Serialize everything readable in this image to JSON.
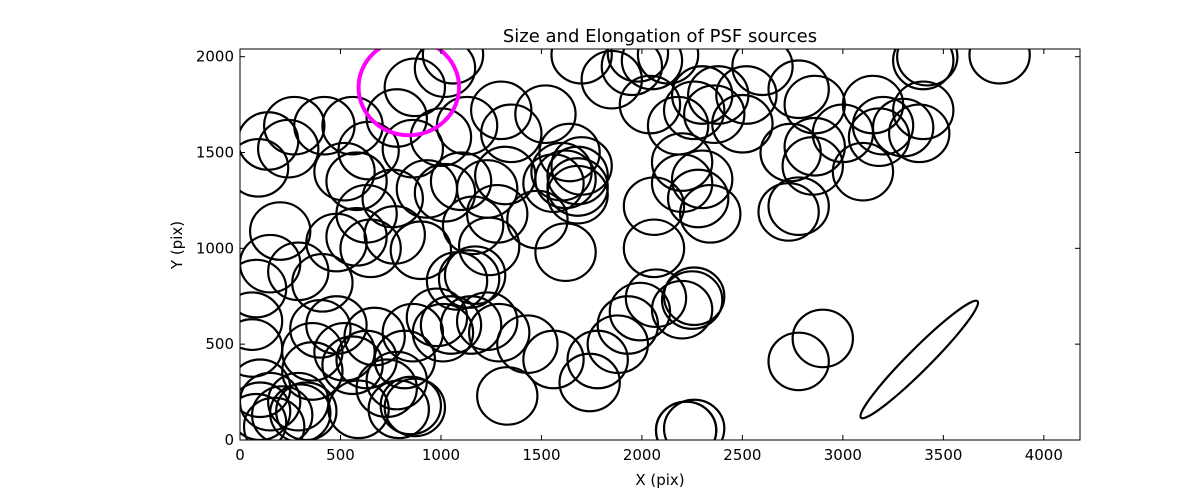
{
  "chart_data": {
    "type": "scatter",
    "marker": "ellipse",
    "title": "Size and Elongation of PSF sources",
    "xlabel": "X (pix)",
    "ylabel": "Y (pix)",
    "xlim": [
      0,
      4180
    ],
    "ylim": [
      0,
      2040
    ],
    "xticks": [
      0,
      500,
      1000,
      1500,
      2000,
      2500,
      3000,
      3500,
      4000
    ],
    "yticks": [
      0,
      500,
      1000,
      1500,
      2000
    ],
    "grid": false,
    "default_diameter": 300,
    "colors": {
      "sources": "#000000",
      "highlight": "#ff00ff"
    },
    "highlight": {
      "x": 840,
      "y": 1840,
      "diameter": 500
    },
    "elongated": [
      {
        "x": 3380,
        "y": 420,
        "major": 820,
        "minor": 110,
        "angle_deg": 45
      }
    ],
    "sources": [
      [
        870,
        1840
      ],
      [
        1020,
        1940
      ],
      [
        1060,
        2010
      ],
      [
        140,
        1560
      ],
      [
        90,
        1420
      ],
      [
        270,
        1640
      ],
      [
        240,
        1520
      ],
      [
        420,
        1640
      ],
      [
        560,
        1640
      ],
      [
        640,
        1510
      ],
      [
        520,
        1400
      ],
      [
        580,
        1350
      ],
      [
        630,
        1180
      ],
      [
        780,
        1680
      ],
      [
        860,
        1520
      ],
      [
        760,
        1260
      ],
      [
        1000,
        1580
      ],
      [
        1130,
        1640
      ],
      [
        1100,
        1350
      ],
      [
        1230,
        1310
      ],
      [
        1320,
        1380
      ],
      [
        1280,
        1180
      ],
      [
        1160,
        1120
      ],
      [
        1300,
        1720
      ],
      [
        1350,
        1600
      ],
      [
        1520,
        1700
      ],
      [
        1560,
        1340
      ],
      [
        1600,
        1400
      ],
      [
        1640,
        1500
      ],
      [
        1700,
        1430
      ],
      [
        1680,
        1280
      ],
      [
        1480,
        1150
      ],
      [
        1620,
        980
      ],
      [
        1700,
        2010
      ],
      [
        1850,
        1880
      ],
      [
        1950,
        1950
      ],
      [
        2050,
        1980
      ],
      [
        1980,
        2020
      ],
      [
        2130,
        2010
      ],
      [
        2040,
        1750
      ],
      [
        2180,
        1640
      ],
      [
        2260,
        1720
      ],
      [
        2300,
        1800
      ],
      [
        2360,
        1700
      ],
      [
        2380,
        1800
      ],
      [
        2520,
        1800
      ],
      [
        2500,
        1650
      ],
      [
        2600,
        1950
      ],
      [
        2780,
        1830
      ],
      [
        2860,
        1750
      ],
      [
        2740,
        1500
      ],
      [
        2850,
        1430
      ],
      [
        2860,
        1530
      ],
      [
        3000,
        1600
      ],
      [
        3100,
        1400
      ],
      [
        3150,
        1750
      ],
      [
        3200,
        1640
      ],
      [
        3180,
        1580
      ],
      [
        3300,
        1630
      ],
      [
        3380,
        1600
      ],
      [
        3400,
        1720
      ],
      [
        3400,
        1980
      ],
      [
        3420,
        2000
      ],
      [
        3780,
        2010
      ],
      [
        2200,
        1450
      ],
      [
        2300,
        1360
      ],
      [
        2200,
        1340
      ],
      [
        2280,
        1260
      ],
      [
        2340,
        1180
      ],
      [
        2060,
        1220
      ],
      [
        2060,
        1000
      ],
      [
        1990,
        670
      ],
      [
        1880,
        500
      ],
      [
        1930,
        600
      ],
      [
        2070,
        740
      ],
      [
        2200,
        680
      ],
      [
        2250,
        730
      ],
      [
        2260,
        750
      ],
      [
        1780,
        420
      ],
      [
        1740,
        300
      ],
      [
        1560,
        420
      ],
      [
        1430,
        500
      ],
      [
        1290,
        560
      ],
      [
        1330,
        230
      ],
      [
        1230,
        620
      ],
      [
        1150,
        600
      ],
      [
        1140,
        840
      ],
      [
        1240,
        1010
      ],
      [
        1080,
        830
      ],
      [
        1170,
        860
      ],
      [
        1050,
        600
      ],
      [
        980,
        640
      ],
      [
        860,
        560
      ],
      [
        820,
        420
      ],
      [
        780,
        310
      ],
      [
        730,
        270
      ],
      [
        870,
        170
      ],
      [
        850,
        180
      ],
      [
        790,
        160
      ],
      [
        590,
        160
      ],
      [
        520,
        460
      ],
      [
        480,
        600
      ],
      [
        400,
        580
      ],
      [
        360,
        360
      ],
      [
        330,
        150
      ],
      [
        290,
        200
      ],
      [
        210,
        130
      ],
      [
        150,
        200
      ],
      [
        100,
        270
      ],
      [
        80,
        90
      ],
      [
        60,
        480
      ],
      [
        60,
        620
      ],
      [
        80,
        790
      ],
      [
        150,
        920
      ],
      [
        200,
        1090
      ],
      [
        290,
        880
      ],
      [
        410,
        820
      ],
      [
        480,
        1030
      ],
      [
        580,
        1060
      ],
      [
        650,
        1000
      ],
      [
        770,
        1070
      ],
      [
        900,
        990
      ],
      [
        930,
        1310
      ],
      [
        1020,
        1290
      ],
      [
        1010,
        560
      ],
      [
        670,
        540
      ],
      [
        630,
        420
      ],
      [
        560,
        390
      ],
      [
        2220,
        50
      ],
      [
        2260,
        60
      ],
      [
        2780,
        1220
      ],
      [
        2730,
        1190
      ],
      [
        2900,
        530
      ],
      [
        2780,
        410
      ],
      [
        1620,
        1360
      ],
      [
        1680,
        1380
      ],
      [
        360,
        460
      ],
      [
        300,
        140
      ],
      [
        170,
        70
      ],
      [
        100,
        150
      ],
      [
        1680,
        1320
      ],
      [
        2220,
        50
      ]
    ]
  }
}
